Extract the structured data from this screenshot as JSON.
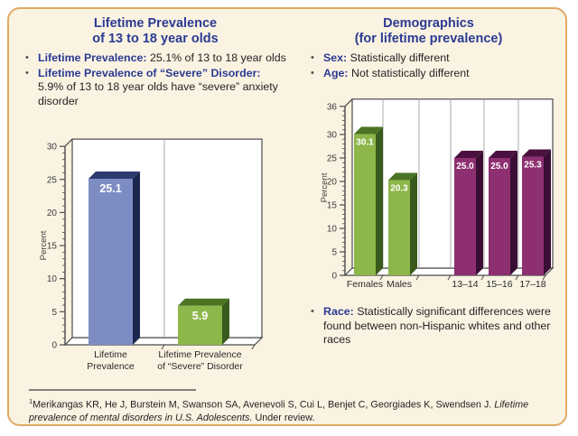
{
  "colors": {
    "heading_blue": "#2b3a92",
    "body_text": "#231f20",
    "panel_bg": "#faf3e2",
    "panel_border": "#e0a967",
    "axis_gray": "#4a4a4a",
    "divider_gray": "#a8a8a8",
    "value_label": "#ffffff"
  },
  "left_panel": {
    "title_line1": "Lifetime Prevalence",
    "title_line2": "of 13 to 18 year olds",
    "bullets": [
      {
        "label": "Lifetime Prevalence:",
        "text": " 25.1% of 13 to 18 year olds"
      },
      {
        "label": "Lifetime Prevalence of “Severe” Disorder:",
        "text": " 5.9% of 13 to 18 year olds have “severe” anxiety disorder"
      }
    ]
  },
  "right_panel": {
    "title_line1": "Demographics",
    "title_line2": "(for lifetime prevalence)",
    "bullets": [
      {
        "label": "Sex:",
        "text": " Statistically different"
      },
      {
        "label": "Age:",
        "text": " Not statistically different"
      }
    ],
    "race_bullet": {
      "label": "Race:",
      "text": " Statistically significant differences were found between non-Hispanic whites and other races"
    }
  },
  "footnote": {
    "sup": "1",
    "authors": "Merikangas KR, He J, Burstein M, Swanson SA, Avenevoli S, Cui L, Benjet C, Georgiades K, Swendsen J. ",
    "title_italic": "Lifetime prevalence of mental disorders in U.S. Adolescents.",
    "tail": " Under review."
  },
  "chart_data": [
    {
      "type": "bar",
      "title": "",
      "xlabel": "",
      "ylabel": "Percent",
      "ylim": [
        0,
        30
      ],
      "yticks": [
        0,
        5,
        10,
        15,
        20,
        25,
        30
      ],
      "grid": false,
      "legend": "none",
      "categories": [
        [
          "Lifetime",
          "Prevalence"
        ],
        [
          "Lifetime Prevalence",
          "of “Severe” Disorder"
        ]
      ],
      "values": [
        25.1,
        5.9
      ],
      "labels": [
        "25.1",
        "5.9"
      ],
      "bars": [
        {
          "face": "#7d8dc4",
          "top": "#2c3a6e",
          "side": "#1c2750"
        },
        {
          "face": "#8db64b",
          "top": "#4a7423",
          "side": "#395a1c"
        }
      ]
    },
    {
      "type": "bar",
      "title": "",
      "xlabel": "",
      "ylabel": "Percent",
      "ylim": [
        0,
        36
      ],
      "yticks": [
        0,
        5,
        10,
        15,
        20,
        25,
        30,
        36
      ],
      "grid": false,
      "legend": "none",
      "categories": [
        "Females",
        "Males",
        "13–14",
        "15–16",
        "17–18"
      ],
      "values": [
        30.1,
        20.3,
        25.0,
        25.0,
        25.3
      ],
      "labels": [
        "30.1",
        "20.3",
        "25.0",
        "25.0",
        "25.3"
      ],
      "bars": [
        {
          "face": "#8db64b",
          "top": "#4a7423",
          "side": "#395a1c"
        },
        {
          "face": "#8db64b",
          "top": "#4a7423",
          "side": "#395a1c"
        },
        {
          "face": "#8d2f70",
          "top": "#4a1140",
          "side": "#3a0d33"
        },
        {
          "face": "#8d2f70",
          "top": "#4a1140",
          "side": "#3a0d33"
        },
        {
          "face": "#8d2f70",
          "top": "#4a1140",
          "side": "#3a0d33"
        }
      ]
    }
  ]
}
